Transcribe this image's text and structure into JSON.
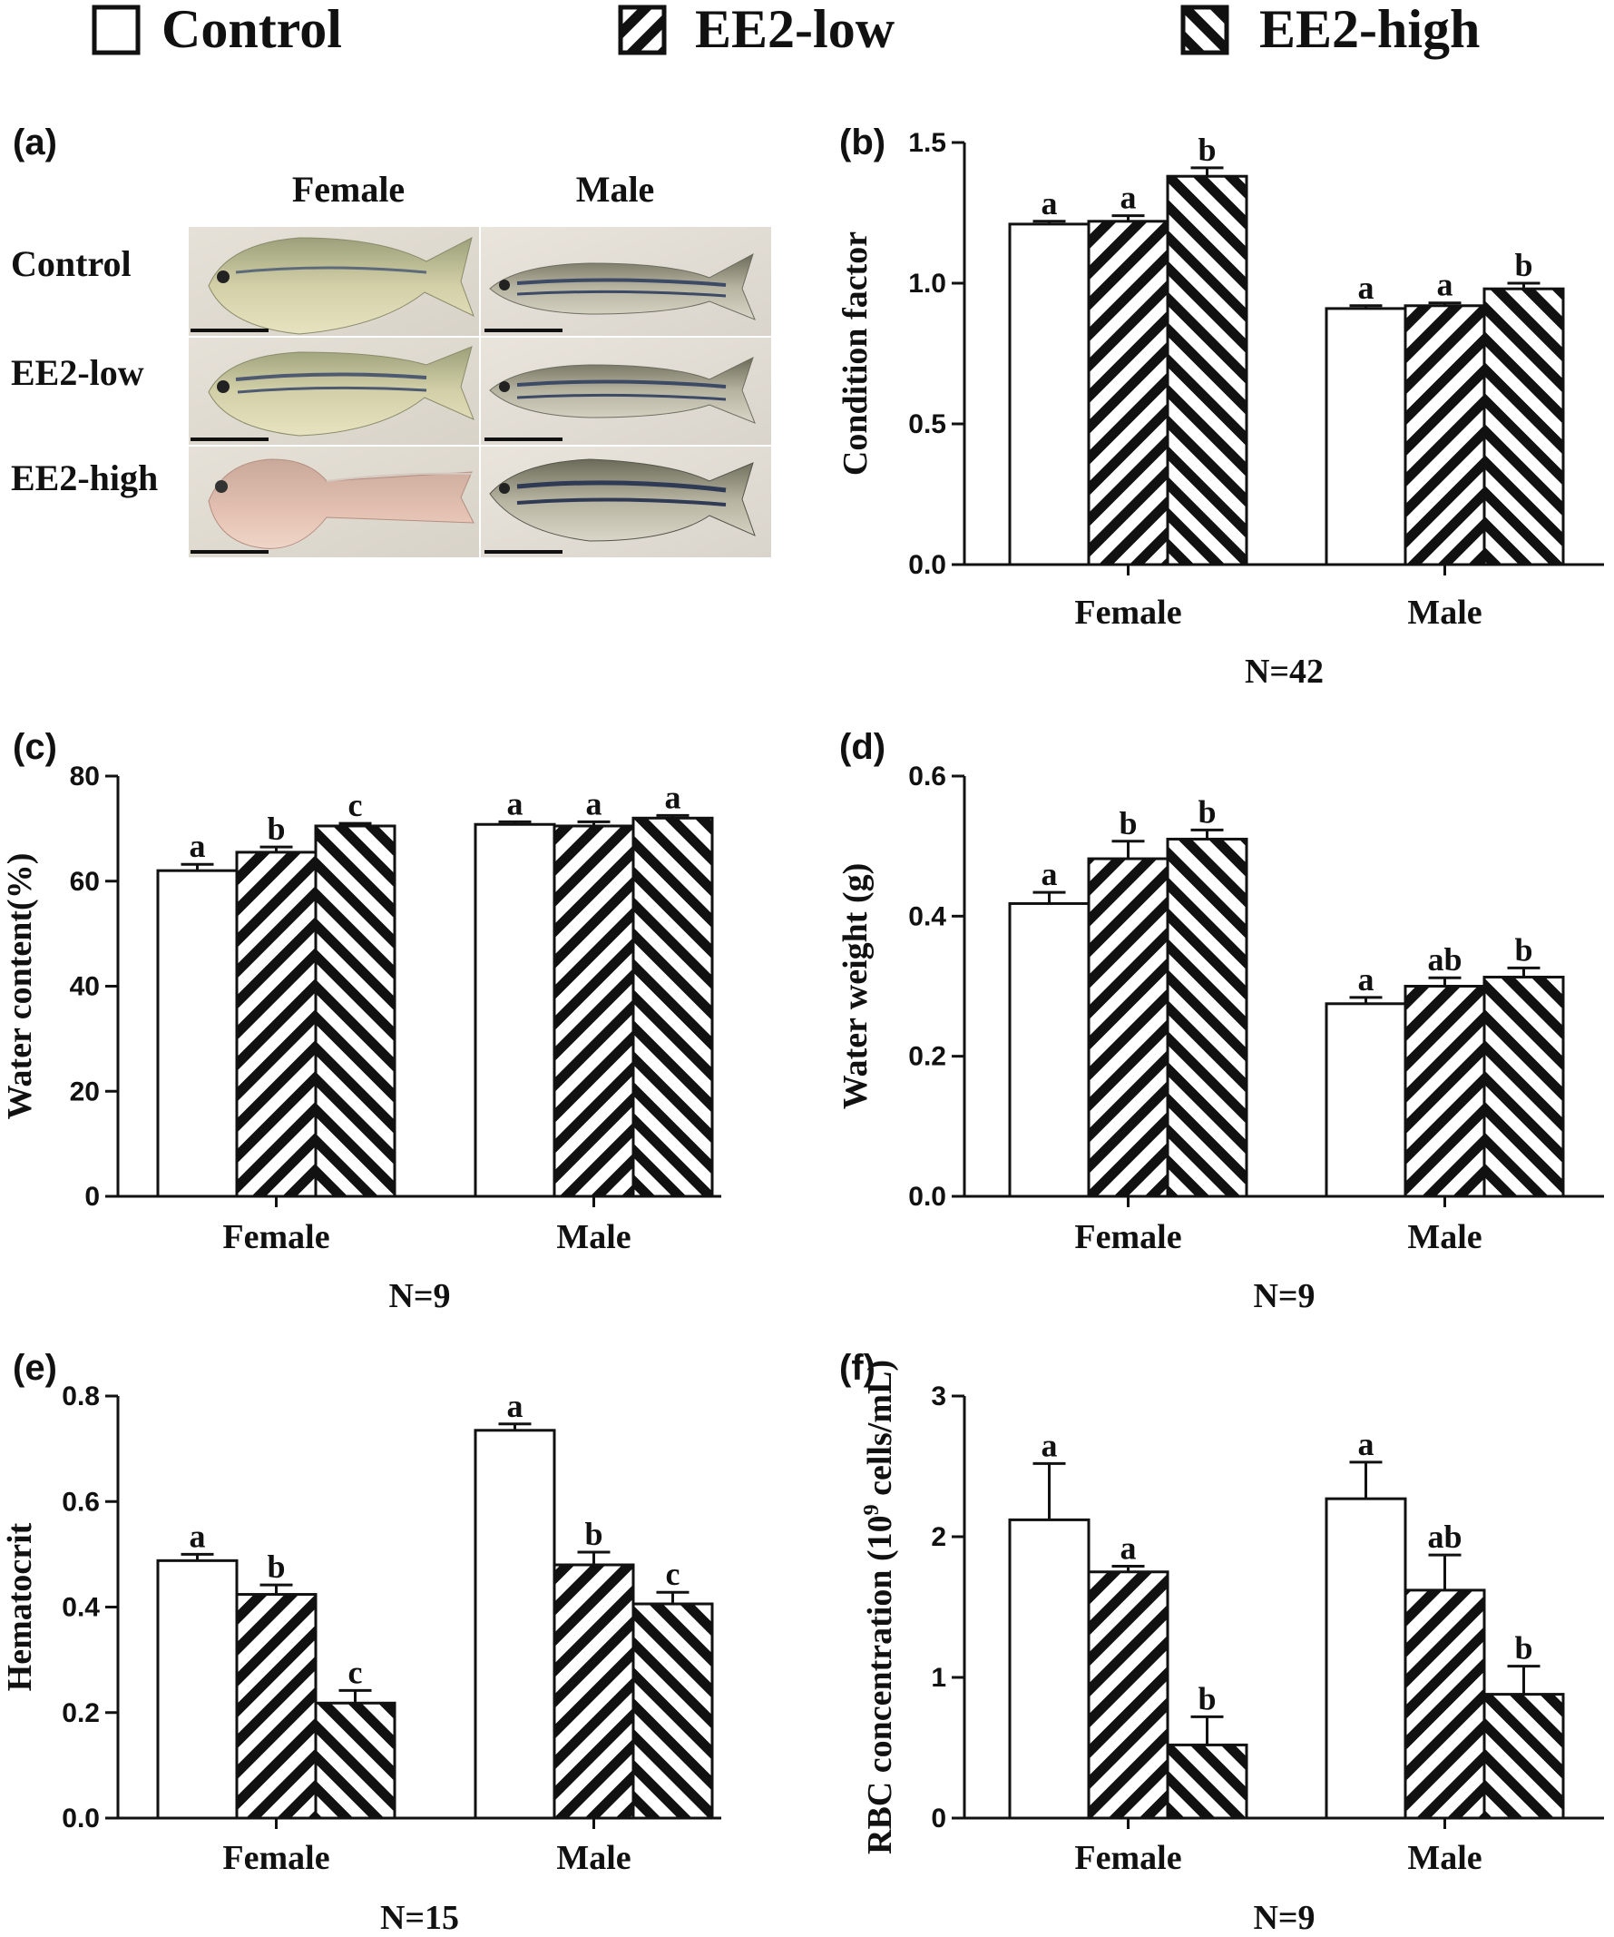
{
  "legend": [
    {
      "label": "Control",
      "pattern": "none"
    },
    {
      "label": "EE2-low",
      "pattern": "hatch-right"
    },
    {
      "label": "EE2-high",
      "pattern": "hatch-left"
    }
  ],
  "photo_panel": {
    "letter": "(a)",
    "columns": [
      "Female",
      "Male"
    ],
    "rows": [
      "Control",
      "EE2-low",
      "EE2-high"
    ]
  },
  "chart_data": [
    {
      "id": "b",
      "letter": "(b)",
      "type": "bar",
      "categories": [
        "Female",
        "Male"
      ],
      "ylabel": "Condition factor",
      "ylim": [
        0,
        1.5
      ],
      "yticks": [
        "0.0",
        "0.5",
        "1.0",
        "1.5"
      ],
      "ytick_values": [
        0,
        0.5,
        1.0,
        1.5
      ],
      "n_label": "N=42",
      "series": [
        {
          "name": "Control",
          "values": [
            1.21,
            0.91
          ],
          "errors": [
            0.01,
            0.01
          ],
          "sig": [
            "a",
            "a"
          ]
        },
        {
          "name": "EE2-low",
          "values": [
            1.22,
            0.92
          ],
          "errors": [
            0.02,
            0.01
          ],
          "sig": [
            "a",
            "a"
          ]
        },
        {
          "name": "EE2-high",
          "values": [
            1.38,
            0.98
          ],
          "errors": [
            0.03,
            0.02
          ],
          "sig": [
            "b",
            "b"
          ]
        }
      ]
    },
    {
      "id": "c",
      "letter": "(c)",
      "type": "bar",
      "categories": [
        "Female",
        "Male"
      ],
      "ylabel": "Water content(%)",
      "ylim": [
        0,
        80
      ],
      "yticks": [
        "0",
        "20",
        "40",
        "60",
        "80"
      ],
      "ytick_values": [
        0,
        20,
        40,
        60,
        80
      ],
      "n_label": "N=9",
      "series": [
        {
          "name": "Control",
          "values": [
            62,
            70.8
          ],
          "errors": [
            1.2,
            0.5
          ],
          "sig": [
            "a",
            "a"
          ]
        },
        {
          "name": "EE2-low",
          "values": [
            65.5,
            70.5
          ],
          "errors": [
            1.0,
            0.8
          ],
          "sig": [
            "b",
            "a"
          ]
        },
        {
          "name": "EE2-high",
          "values": [
            70.5,
            72
          ],
          "errors": [
            0.5,
            0.5
          ],
          "sig": [
            "c",
            "a"
          ]
        }
      ]
    },
    {
      "id": "d",
      "letter": "(d)",
      "type": "bar",
      "categories": [
        "Female",
        "Male"
      ],
      "ylabel": "Water weight (g)",
      "ylim": [
        0,
        0.6
      ],
      "yticks": [
        "0.0",
        "0.2",
        "0.4",
        "0.6"
      ],
      "ytick_values": [
        0,
        0.2,
        0.4,
        0.6
      ],
      "n_label": "N=9",
      "series": [
        {
          "name": "Control",
          "values": [
            0.418,
            0.275
          ],
          "errors": [
            0.016,
            0.009
          ],
          "sig": [
            "a",
            "a"
          ]
        },
        {
          "name": "EE2-low",
          "values": [
            0.482,
            0.3
          ],
          "errors": [
            0.025,
            0.012
          ],
          "sig": [
            "b",
            "ab"
          ]
        },
        {
          "name": "EE2-high",
          "values": [
            0.51,
            0.313
          ],
          "errors": [
            0.013,
            0.013
          ],
          "sig": [
            "b",
            "b"
          ]
        }
      ]
    },
    {
      "id": "e",
      "letter": "(e)",
      "type": "bar",
      "categories": [
        "Female",
        "Male"
      ],
      "ylabel": "Hematocrit",
      "ylim": [
        0,
        0.8
      ],
      "yticks": [
        "0.0",
        "0.2",
        "0.4",
        "0.6",
        "0.8"
      ],
      "ytick_values": [
        0,
        0.2,
        0.4,
        0.6,
        0.8
      ],
      "n_label": "N=15",
      "series": [
        {
          "name": "Control",
          "values": [
            0.488,
            0.735
          ],
          "errors": [
            0.012,
            0.012
          ],
          "sig": [
            "a",
            "a"
          ]
        },
        {
          "name": "EE2-low",
          "values": [
            0.424,
            0.48
          ],
          "errors": [
            0.018,
            0.024
          ],
          "sig": [
            "b",
            "b"
          ]
        },
        {
          "name": "EE2-high",
          "values": [
            0.218,
            0.406
          ],
          "errors": [
            0.024,
            0.022
          ],
          "sig": [
            "c",
            "c"
          ]
        }
      ]
    },
    {
      "id": "f",
      "letter": "(f)",
      "type": "bar",
      "categories": [
        "Female",
        "Male"
      ],
      "ylabel_pre": "RBC concentration (10",
      "ylabel_sup": "9",
      "ylabel_post": " cells/mL)",
      "ylim": [
        0,
        3
      ],
      "yticks": [
        "0",
        "1",
        "2",
        "3"
      ],
      "ytick_values": [
        0,
        1,
        2,
        3
      ],
      "n_label": "N=9",
      "series": [
        {
          "name": "Control",
          "values": [
            2.12,
            2.27
          ],
          "errors": [
            0.4,
            0.26
          ],
          "sig": [
            "a",
            "a"
          ]
        },
        {
          "name": "EE2-low",
          "values": [
            1.75,
            1.62
          ],
          "errors": [
            0.04,
            0.25
          ],
          "sig": [
            "a",
            "ab"
          ]
        },
        {
          "name": "EE2-high",
          "values": [
            0.52,
            0.88
          ],
          "errors": [
            0.2,
            0.2
          ],
          "sig": [
            "b",
            "b"
          ]
        }
      ]
    }
  ]
}
